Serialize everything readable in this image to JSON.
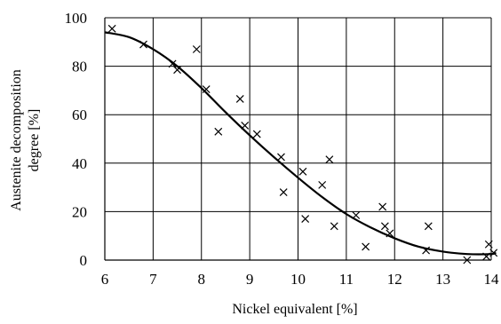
{
  "chart_data": {
    "type": "scatter",
    "title": "",
    "xlabel": "Nickel equivalent [%]",
    "ylabel_line1": "Austenite decomposition",
    "ylabel_line2": "degree [%]",
    "xlim": [
      6,
      14
    ],
    "ylim": [
      0,
      100
    ],
    "xticks": [
      6,
      7,
      8,
      9,
      10,
      11,
      12,
      13,
      14
    ],
    "yticks": [
      0,
      20,
      40,
      60,
      80,
      100
    ],
    "grid": true,
    "legend": "none",
    "marker": "x",
    "series": [
      {
        "kind": "points",
        "points": [
          [
            6.15,
            95.5
          ],
          [
            6.8,
            89
          ],
          [
            7.4,
            81
          ],
          [
            7.5,
            78.5
          ],
          [
            7.9,
            87
          ],
          [
            8.1,
            70.5
          ],
          [
            8.35,
            53
          ],
          [
            8.8,
            66.5
          ],
          [
            8.9,
            55.5
          ],
          [
            9.15,
            52
          ],
          [
            9.65,
            42.5
          ],
          [
            9.7,
            28
          ],
          [
            10.1,
            36.5
          ],
          [
            10.15,
            17
          ],
          [
            10.5,
            31
          ],
          [
            10.65,
            41.5
          ],
          [
            10.75,
            14
          ],
          [
            11.2,
            18.5
          ],
          [
            11.4,
            5.5
          ],
          [
            11.75,
            22
          ],
          [
            11.8,
            14
          ],
          [
            11.9,
            11
          ],
          [
            12.65,
            4
          ],
          [
            12.7,
            14
          ],
          [
            13.5,
            0
          ],
          [
            13.9,
            1.5
          ],
          [
            13.95,
            6.5
          ],
          [
            14.05,
            3
          ]
        ]
      },
      {
        "kind": "fit-curve",
        "points": [
          [
            6.0,
            94
          ],
          [
            6.5,
            92
          ],
          [
            7.0,
            87
          ],
          [
            7.5,
            80
          ],
          [
            8.0,
            71
          ],
          [
            8.5,
            61
          ],
          [
            9.0,
            51.5
          ],
          [
            9.5,
            42.5
          ],
          [
            10.0,
            34
          ],
          [
            10.5,
            26
          ],
          [
            11.0,
            19
          ],
          [
            11.5,
            13.5
          ],
          [
            12.0,
            9
          ],
          [
            12.5,
            5.5
          ],
          [
            13.0,
            3.5
          ],
          [
            13.5,
            2.5
          ],
          [
            14.0,
            2.5
          ],
          [
            14.1,
            3
          ]
        ]
      }
    ]
  }
}
